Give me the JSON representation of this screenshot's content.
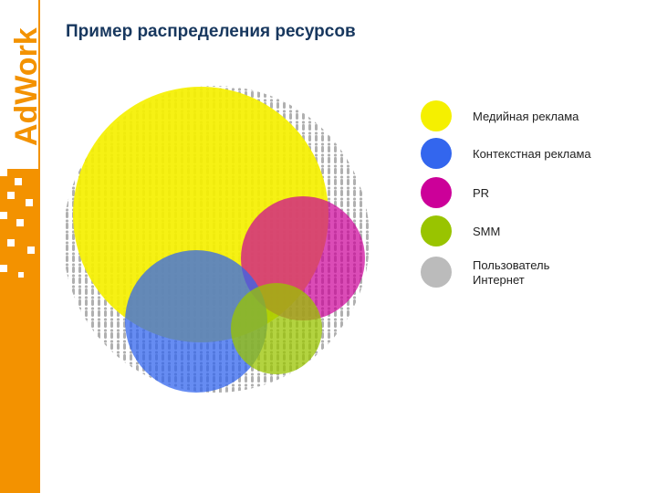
{
  "logo": "AdWork",
  "title": "Пример распределения ресурсов",
  "legend": [
    {
      "label": [
        "Медийная реклама"
      ],
      "color": "#f5f000"
    },
    {
      "label": [
        "Контекстная реклама"
      ],
      "color": "#3366ee"
    },
    {
      "label": [
        "PR"
      ],
      "color": "#cc0099"
    },
    {
      "label": [
        "SMM"
      ],
      "color": "#99c400"
    },
    {
      "label": [
        "Пользователь",
        "Интернет"
      ],
      "color": "#bbbbbb"
    }
  ]
}
